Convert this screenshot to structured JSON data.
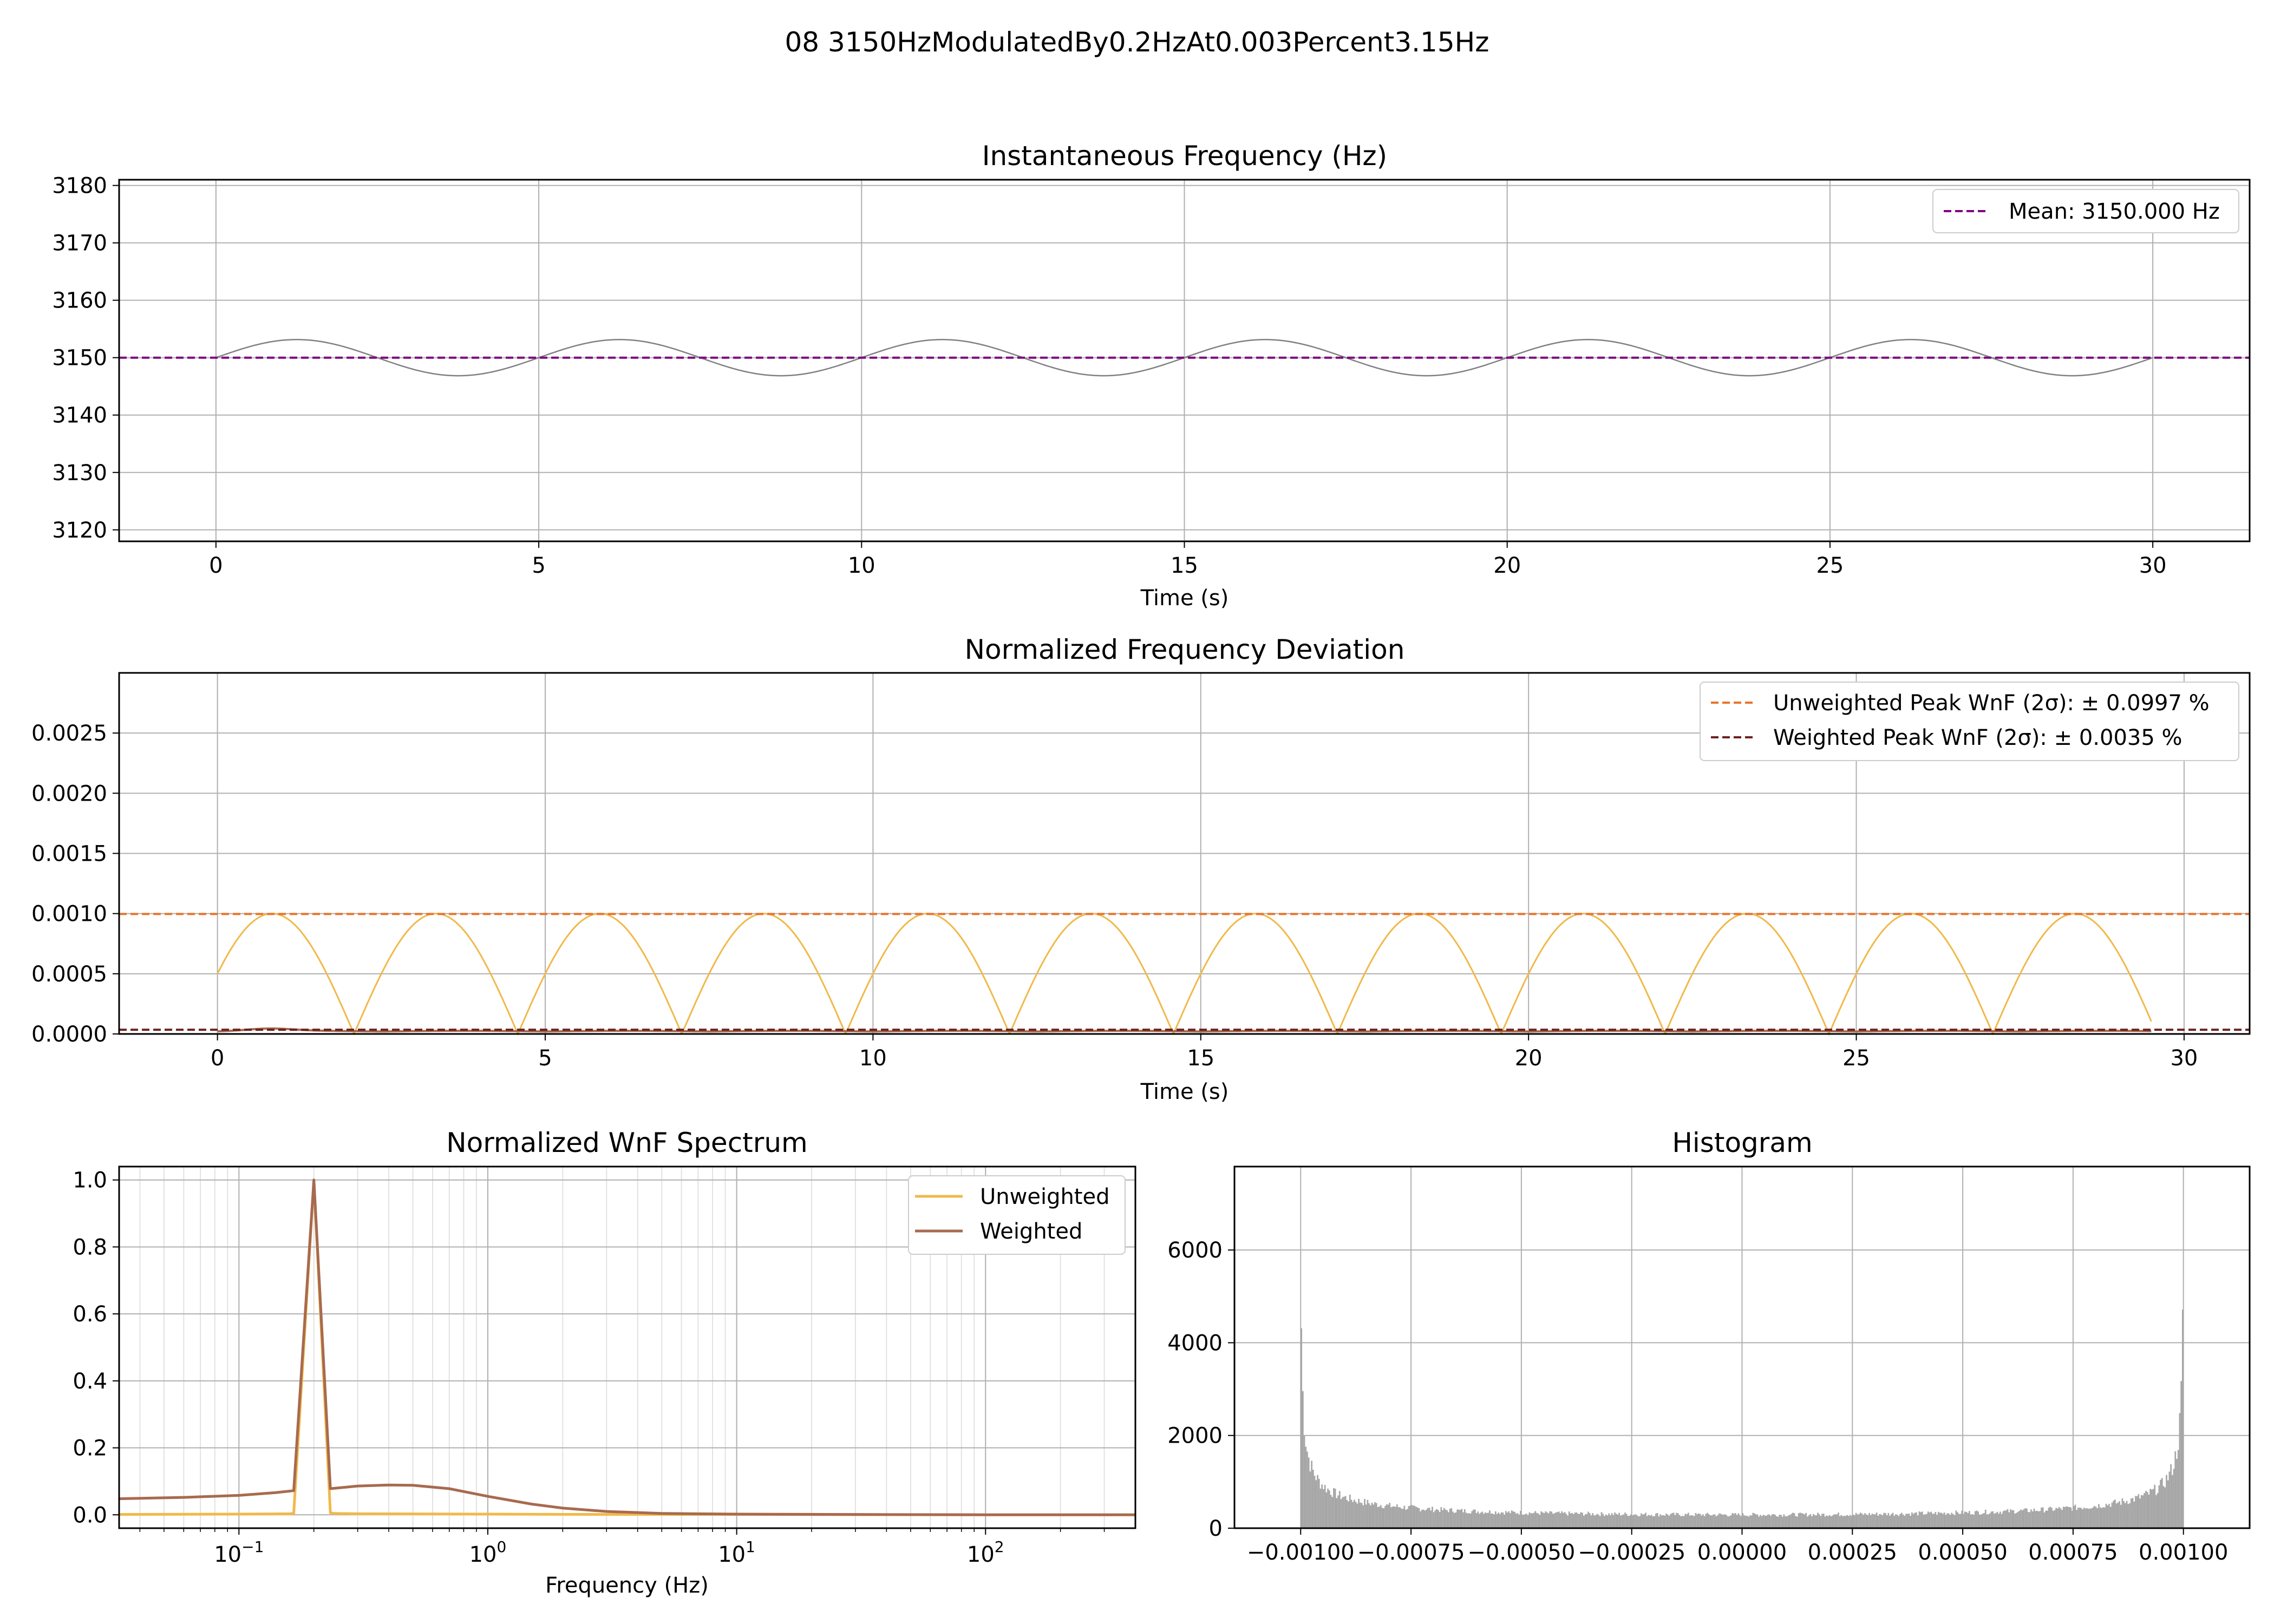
{
  "suptitle": "08 3150HzModulatedBy0.2HzAt0.003Percent3.15Hz",
  "colors": {
    "grid": "#b0b0b0",
    "grid_minor": "#e2e2e2",
    "signal": "#808080",
    "mean": "#800080",
    "unweighted": "#f0b94a",
    "weighted": "#a86a4f",
    "unweighted_peak": "#e8742a",
    "weighted_peak": "#6b1f1f",
    "hist": "#a6a6a6"
  },
  "chart_data": [
    {
      "type": "line",
      "title": "Instantaneous Frequency (Hz)",
      "xlabel": "Time (s)",
      "ylabel": "",
      "xlim": [
        -1.5,
        31.5
      ],
      "ylim": [
        3118,
        3181
      ],
      "xticks": [
        0,
        5,
        10,
        15,
        20,
        25,
        30
      ],
      "yticks": [
        3120,
        3130,
        3140,
        3150,
        3160,
        3170,
        3180
      ],
      "grid": true,
      "legend_position": "upper right",
      "signal": {
        "mean": 3150,
        "amplitude": 3.15,
        "mod_freq_hz": 0.2,
        "t_start": 0,
        "t_end": 30
      },
      "reference_lines": [
        {
          "name": "Mean: 3150.000 Hz",
          "y": 3150,
          "style": "dashed",
          "color_key": "mean"
        }
      ]
    },
    {
      "type": "line",
      "title": "Normalized Frequency Deviation",
      "xlabel": "Time (s)",
      "ylabel": "",
      "xlim": [
        -1.5,
        31.0
      ],
      "ylim": [
        0,
        0.003
      ],
      "xticks": [
        0,
        5,
        10,
        15,
        20,
        25,
        30
      ],
      "yticks": [
        "0.0000",
        "0.0005",
        "0.0010",
        "0.0015",
        "0.0020",
        "0.0025"
      ],
      "grid": true,
      "legend_position": "upper right",
      "series": [
        {
          "shape": "abs_sine",
          "peak": 0.001,
          "mod_freq_hz": 0.2,
          "t_start": 0,
          "t_end": 29.5,
          "color_key": "unweighted"
        },
        {
          "shape": "flat_small",
          "peak": 3.5e-05,
          "t_start": 0,
          "t_end": 29.5,
          "color_key": "weighted"
        }
      ],
      "reference_lines": [
        {
          "name": "Unweighted Peak WnF (2σ): ± 0.0997 %",
          "y": 0.000997,
          "style": "dashed",
          "color_key": "unweighted_peak"
        },
        {
          "name": "Weighted Peak WnF (2σ): ± 0.0035 %",
          "y": 3.5e-05,
          "style": "dashed",
          "color_key": "weighted_peak"
        }
      ]
    },
    {
      "type": "line",
      "title": "Normalized WnF Spectrum",
      "xlabel": "Frequency (Hz)",
      "ylabel": "",
      "xscale": "log",
      "xlim": [
        0.033,
        400
      ],
      "ylim": [
        -0.04,
        1.04
      ],
      "xticks": [
        0.1,
        1,
        10,
        100
      ],
      "xtick_labels": [
        {
          "base": "10",
          "exp": "−1"
        },
        {
          "base": "10",
          "exp": "0"
        },
        {
          "base": "10",
          "exp": "1"
        },
        {
          "base": "10",
          "exp": "2"
        }
      ],
      "yticks": [
        "0.0",
        "0.2",
        "0.4",
        "0.6",
        "0.8",
        "1.0"
      ],
      "grid": true,
      "legend_position": "upper right",
      "series": [
        {
          "name": "Unweighted",
          "color_key": "unweighted",
          "x": [
            0.033,
            0.1,
            0.16,
            0.166,
            0.2,
            0.233,
            0.24,
            0.3,
            1,
            3,
            10,
            100,
            400
          ],
          "y": [
            0.001,
            0.002,
            0.003,
            0.004,
            1.0,
            0.006,
            0.004,
            0.003,
            0.002,
            0.001,
            0.001,
            0.0,
            0.0
          ]
        },
        {
          "name": "Weighted",
          "color_key": "weighted",
          "x": [
            0.033,
            0.06,
            0.1,
            0.14,
            0.166,
            0.2,
            0.233,
            0.3,
            0.4,
            0.5,
            0.7,
            1,
            1.5,
            2,
            3,
            5,
            10,
            100,
            400
          ],
          "y": [
            0.048,
            0.052,
            0.058,
            0.066,
            0.072,
            1.0,
            0.078,
            0.086,
            0.089,
            0.088,
            0.078,
            0.055,
            0.032,
            0.02,
            0.01,
            0.004,
            0.002,
            0.0,
            0.0
          ]
        }
      ]
    },
    {
      "type": "bar",
      "title": "Histogram",
      "xlabel": "",
      "ylabel": "",
      "xlim": [
        -0.00115,
        0.00115
      ],
      "ylim": [
        0,
        7800
      ],
      "xticks": [
        "−0.00100",
        "−0.00075",
        "−0.00050",
        "−0.00025",
        "0.00000",
        "0.00025",
        "0.00050",
        "0.00075",
        "0.00100"
      ],
      "xtick_values": [
        -0.001,
        -0.00075,
        -0.0005,
        -0.00025,
        0,
        0.00025,
        0.0005,
        0.00075,
        0.001
      ],
      "yticks": [
        0,
        2000,
        4000,
        6000
      ],
      "grid": true,
      "distribution": {
        "shape": "arcsine",
        "range": [
          -0.001,
          0.001
        ],
        "bins": 600,
        "edge_peak": 4500,
        "center_value": 290
      }
    }
  ]
}
